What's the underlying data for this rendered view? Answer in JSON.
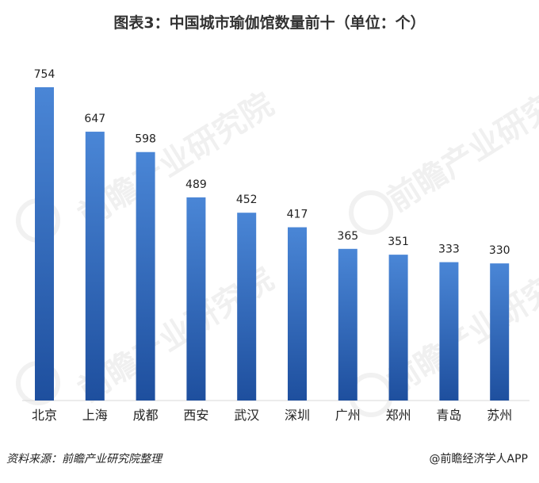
{
  "watermark": "前瞻产业研究院",
  "footer": {
    "source": "资料来源：前瞻产业研究院整理",
    "brand": "@前瞻经济学人APP"
  },
  "colors": {
    "bar_top": "#4a86d6",
    "bar_bottom": "#1e4f9e",
    "label": "#222222"
  },
  "chart_data": {
    "type": "bar",
    "title": "图表3：中国城市瑜伽馆数量前十（单位：个）",
    "categories": [
      "北京",
      "上海",
      "成都",
      "西安",
      "武汉",
      "深圳",
      "广州",
      "郑州",
      "青岛",
      "苏州"
    ],
    "values": [
      754,
      647,
      598,
      489,
      452,
      417,
      365,
      351,
      333,
      330
    ],
    "ylim": [
      0,
      754
    ],
    "grid": false,
    "legend": "none"
  }
}
